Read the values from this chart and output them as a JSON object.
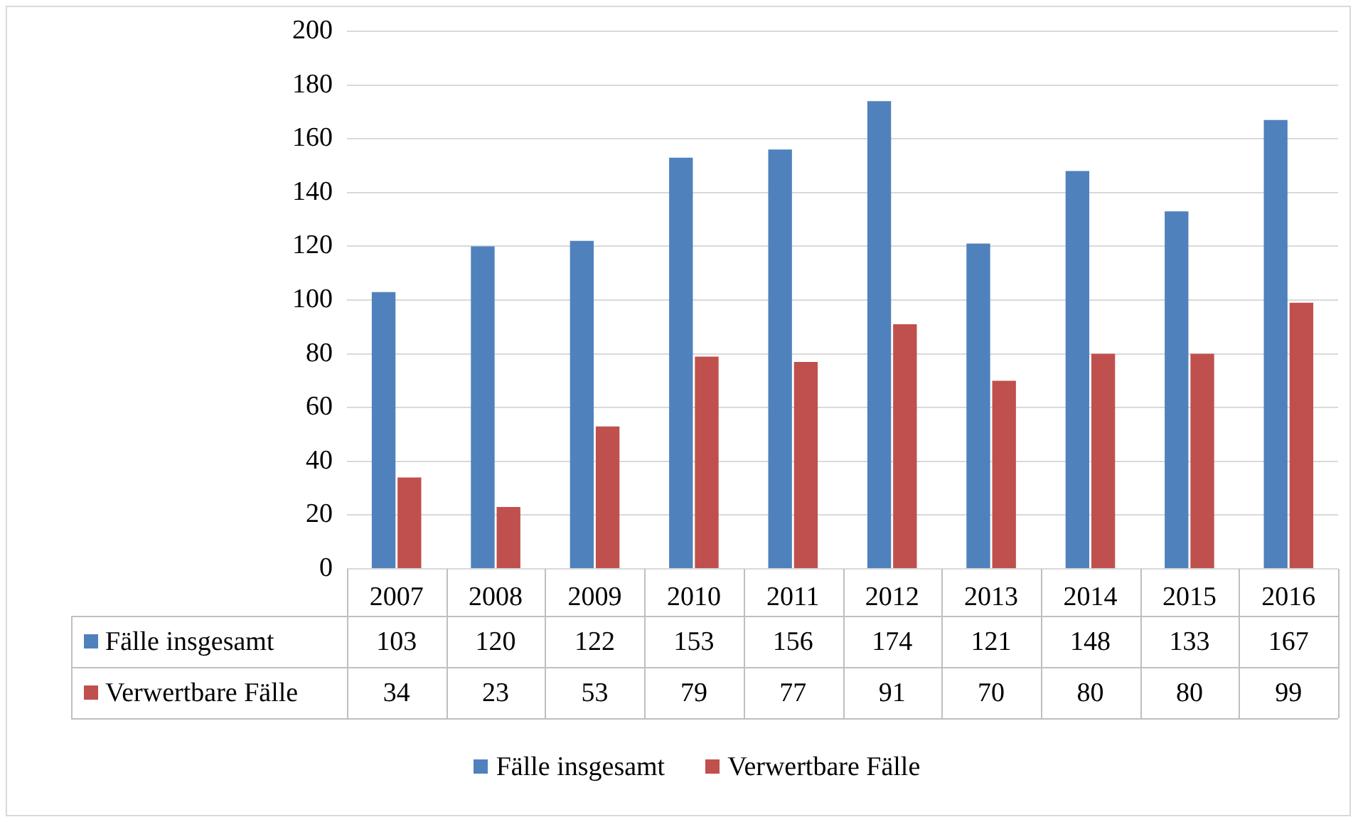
{
  "chart_data": {
    "type": "bar",
    "categories": [
      "2007",
      "2008",
      "2009",
      "2010",
      "2011",
      "2012",
      "2013",
      "2014",
      "2015",
      "2016"
    ],
    "series": [
      {
        "name": "Fälle insgesamt",
        "color": "#4f81bd",
        "values": [
          103,
          120,
          122,
          153,
          156,
          174,
          121,
          148,
          133,
          167
        ]
      },
      {
        "name": "Verwertbare Fälle",
        "color": "#c0504d",
        "values": [
          34,
          23,
          53,
          79,
          77,
          91,
          70,
          80,
          80,
          99
        ]
      }
    ],
    "ylim": [
      0,
      200
    ],
    "yticks": [
      0,
      20,
      40,
      60,
      80,
      100,
      120,
      140,
      160,
      180,
      200
    ],
    "grid": "y",
    "legend": "bottom",
    "data_labels": true
  }
}
